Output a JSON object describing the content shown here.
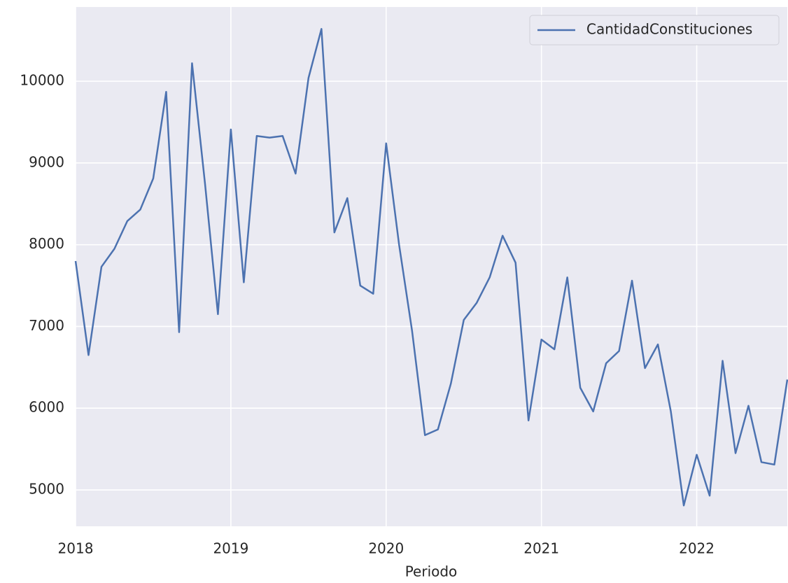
{
  "chart_data": {
    "type": "line",
    "xlabel": "Periodo",
    "x": [
      "2018-01",
      "2018-02",
      "2018-03",
      "2018-04",
      "2018-05",
      "2018-06",
      "2018-07",
      "2018-08",
      "2018-09",
      "2018-10",
      "2018-11",
      "2018-12",
      "2019-01",
      "2019-02",
      "2019-03",
      "2019-04",
      "2019-05",
      "2019-06",
      "2019-07",
      "2019-08",
      "2019-09",
      "2019-10",
      "2019-11",
      "2019-12",
      "2020-01",
      "2020-02",
      "2020-03",
      "2020-04",
      "2020-05",
      "2020-06",
      "2020-07",
      "2020-08",
      "2020-09",
      "2020-10",
      "2020-11",
      "2020-12",
      "2021-01",
      "2021-02",
      "2021-03",
      "2021-04",
      "2021-05",
      "2021-06",
      "2021-07",
      "2021-08",
      "2021-09",
      "2021-10",
      "2021-11",
      "2021-12",
      "2022-01",
      "2022-02",
      "2022-03",
      "2022-04",
      "2022-05",
      "2022-06",
      "2022-07",
      "2022-08"
    ],
    "series": [
      {
        "name": "CantidadConstituciones",
        "color": "#4c72b0",
        "values": [
          7800,
          6650,
          7730,
          7950,
          8290,
          8430,
          8810,
          9870,
          6930,
          10220,
          8750,
          7150,
          9410,
          7540,
          9330,
          9310,
          9330,
          8870,
          10040,
          10640,
          8150,
          8570,
          7500,
          7400,
          9240,
          8000,
          6950,
          5670,
          5740,
          6300,
          7080,
          7290,
          7600,
          8110,
          7780,
          5850,
          6840,
          6720,
          7600,
          6250,
          5960,
          6550,
          6700,
          7560,
          6490,
          6780,
          5960,
          4810,
          5430,
          4930,
          6580,
          5450,
          6030,
          5340,
          5310,
          6350
        ]
      }
    ],
    "xlim": [
      "2018-01",
      "2022-08"
    ],
    "xticks": [
      {
        "value": "2018-01",
        "label": "2018"
      },
      {
        "value": "2019-01",
        "label": "2019"
      },
      {
        "value": "2020-01",
        "label": "2020"
      },
      {
        "value": "2021-01",
        "label": "2021"
      },
      {
        "value": "2022-01",
        "label": "2022"
      }
    ],
    "ylim": [
      4555,
      10908
    ],
    "yticks": [
      5000,
      6000,
      7000,
      8000,
      9000,
      10000
    ],
    "grid": true,
    "legend": "upper right"
  }
}
